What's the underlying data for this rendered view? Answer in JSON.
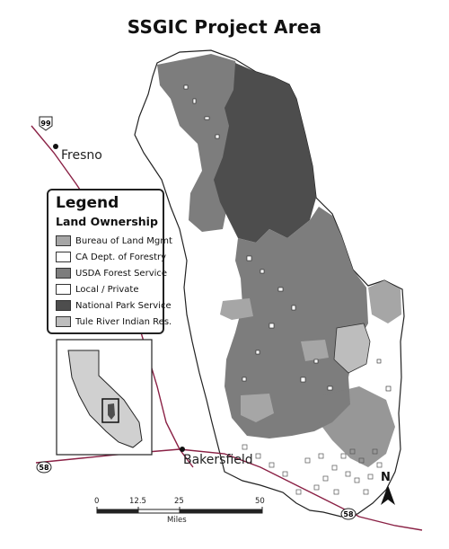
{
  "title": "SSGIC Project Area",
  "legend": {
    "title": "Legend",
    "subtitle": "Land Ownership",
    "items": [
      {
        "label": "Bureau of Land Mgmt",
        "color": "#a6a6a6"
      },
      {
        "label": "CA Dept. of Forestry",
        "color": "#ffffff"
      },
      {
        "label": "USDA Forest Service",
        "color": "#7d7d7d"
      },
      {
        "label": "Local / Private",
        "color": "#ffffff"
      },
      {
        "label": "National Park Service",
        "color": "#4d4d4d"
      },
      {
        "label": "Tule River Indian Res.",
        "color": "#bdbdbd"
      }
    ]
  },
  "cities": {
    "fresno": "Fresno",
    "bakersfield": "Bakersfield"
  },
  "highways": {
    "hwy99": "99",
    "hwy58_west": "58",
    "hwy58_east": "58"
  },
  "scale": {
    "ticks": [
      "0",
      "12.5",
      "25",
      "50"
    ],
    "unit": "Miles"
  },
  "north_label": "N",
  "colors": {
    "road": "#8a2145",
    "outline": "#222222",
    "nps": "#4d4d4d",
    "usfs": "#7d7d7d",
    "blm": "#a6a6a6",
    "tule": "#bdbdbd",
    "inset_state": "#d0d0d0"
  }
}
